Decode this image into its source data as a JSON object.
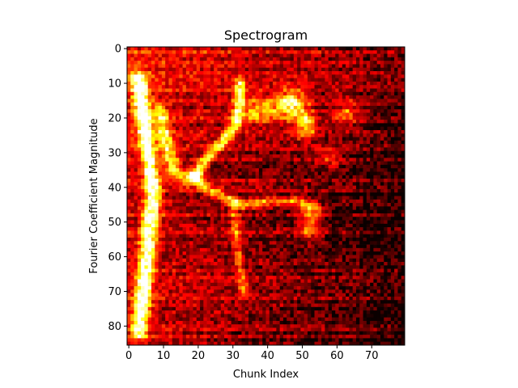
{
  "chart_data": {
    "type": "heatmap",
    "title": "Spectrogram",
    "xlabel": "Chunk Index",
    "ylabel": "Fourier Coefficient Magnitude",
    "colormap": "hot",
    "origin": "upper",
    "n_cols": 80,
    "n_rows": 86,
    "xlim": [
      -0.5,
      79.5
    ],
    "ylim": [
      85.5,
      -0.5
    ],
    "xticks": [
      0,
      10,
      20,
      30,
      40,
      50,
      60,
      70
    ],
    "yticks": [
      0,
      10,
      20,
      30,
      40,
      50,
      60,
      70,
      80
    ],
    "value_range": [
      0,
      1
    ],
    "features": [
      {
        "kind": "band",
        "points": [
          [
            3,
            9
          ],
          [
            4,
            18
          ],
          [
            5,
            26
          ],
          [
            6,
            34
          ],
          [
            7,
            42
          ],
          [
            6,
            52
          ],
          [
            5,
            62
          ],
          [
            4,
            72
          ],
          [
            3,
            82
          ]
        ],
        "peak": 1.0,
        "width": 1.6
      },
      {
        "kind": "band",
        "points": [
          [
            9,
            18
          ],
          [
            11,
            28
          ],
          [
            13,
            35
          ],
          [
            16,
            37
          ],
          [
            19,
            37
          ]
        ],
        "peak": 0.6,
        "width": 1.5
      },
      {
        "kind": "band",
        "points": [
          [
            19,
            37
          ],
          [
            23,
            31
          ],
          [
            27,
            27
          ],
          [
            31,
            22
          ],
          [
            32,
            14
          ],
          [
            32,
            10
          ]
        ],
        "peak": 0.7,
        "width": 1.1
      },
      {
        "kind": "band",
        "points": [
          [
            19,
            37
          ],
          [
            23,
            41
          ],
          [
            28,
            43
          ],
          [
            33,
            45
          ],
          [
            40,
            44
          ],
          [
            48,
            44
          ],
          [
            54,
            46
          ]
        ],
        "peak": 0.5,
        "width": 1.0
      },
      {
        "kind": "band",
        "points": [
          [
            30,
            44
          ],
          [
            31,
            55
          ],
          [
            32,
            62
          ],
          [
            33,
            70
          ]
        ],
        "peak": 0.4,
        "width": 1.0
      },
      {
        "kind": "blob",
        "center": [
          47,
          16
        ],
        "radius": [
          4,
          4
        ],
        "peak": 0.9
      },
      {
        "kind": "blob",
        "center": [
          51,
          22
        ],
        "radius": [
          3,
          4
        ],
        "peak": 0.75
      },
      {
        "kind": "blob",
        "center": [
          38,
          18
        ],
        "radius": [
          6,
          4
        ],
        "peak": 0.55
      },
      {
        "kind": "blob",
        "center": [
          52,
          50
        ],
        "radius": [
          3,
          5
        ],
        "peak": 0.55
      },
      {
        "kind": "blob",
        "center": [
          63,
          18
        ],
        "radius": [
          4,
          4
        ],
        "peak": 0.4
      },
      {
        "kind": "blob",
        "center": [
          58,
          32
        ],
        "radius": [
          4,
          3
        ],
        "peak": 0.35
      }
    ],
    "background": {
      "left": 0.3,
      "right": 0.05,
      "top_extra": 0.12,
      "noise": 0.14,
      "row_streak": 0.09
    }
  }
}
